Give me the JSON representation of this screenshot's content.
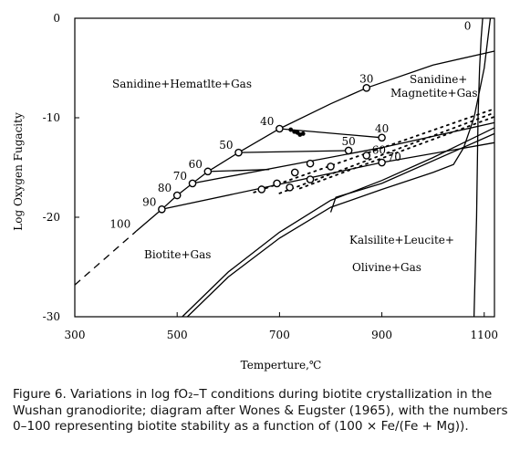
{
  "chart_data": {
    "type": "line",
    "xlabel": "Temperture,℃",
    "ylabel": "Log Oxygen Fugacity",
    "xlim": [
      300,
      1120
    ],
    "ylim": [
      -30,
      0
    ],
    "xticks": [
      "300",
      "500",
      "700",
      "900",
      "1100"
    ],
    "xtick_values": [
      300,
      500,
      700,
      900,
      1100
    ],
    "yticks": [
      "0",
      "-10",
      "-20",
      "-30"
    ],
    "ytick_values": [
      0,
      -10,
      -20,
      -30
    ],
    "grid": false,
    "field_labels": {
      "sanidine_hematite": "Sanidine+Hematlte+Gas",
      "sanidine_magnetite_1": "Sanidine+",
      "sanidine_magnetite_2": "Magnetite+Gas",
      "biotite": "Biotite+Gas",
      "kalsilite_1": "Kalsilite+Leucite+",
      "kalsilite_2": "Olivine+Gas"
    },
    "series": [
      {
        "kind": "line",
        "points": [
          [
            420,
            -21.4
          ],
          [
            470,
            -19.2
          ],
          [
            500,
            -17.8
          ],
          [
            530,
            -16.6
          ],
          [
            560,
            -15.4
          ],
          [
            620,
            -13.5
          ],
          [
            700,
            -11.1
          ],
          [
            800,
            -8.6
          ],
          [
            870,
            -7.0
          ],
          [
            1000,
            -4.7
          ],
          [
            1120,
            -3.3
          ]
        ]
      },
      {
        "kind": "dashed",
        "points": [
          [
            300,
            -26.8
          ],
          [
            420,
            -21.4
          ]
        ]
      },
      {
        "kind": "line",
        "points": [
          [
            1080,
            -30
          ],
          [
            1085,
            -20
          ],
          [
            1088,
            -10
          ],
          [
            1091,
            -5
          ],
          [
            1094,
            -2
          ],
          [
            1097,
            0
          ]
        ]
      },
      {
        "kind": "line",
        "points": [
          [
            470,
            -19.2
          ],
          [
            900,
            -14.5
          ],
          [
            1120,
            -12.5
          ]
        ]
      },
      {
        "kind": "line",
        "points": [
          [
            530,
            -16.6
          ],
          [
            900,
            -13.0
          ],
          [
            1120,
            -10.5
          ]
        ]
      },
      {
        "kind": "line",
        "points": [
          [
            800,
            -19.5
          ],
          [
            810,
            -18.0
          ],
          [
            900,
            -16.6
          ],
          [
            1120,
            -11.6
          ]
        ]
      },
      {
        "kind": "line",
        "points": [
          [
            510,
            -30
          ],
          [
            600,
            -25.5
          ],
          [
            700,
            -21.5
          ],
          [
            800,
            -18.3
          ],
          [
            900,
            -16.3
          ],
          [
            1000,
            -14.0
          ],
          [
            1120,
            -11.0
          ]
        ]
      },
      {
        "kind": "line",
        "points": [
          [
            520,
            -30
          ],
          [
            600,
            -26.0
          ],
          [
            700,
            -22.1
          ],
          [
            800,
            -19.0
          ],
          [
            900,
            -17.2
          ],
          [
            1000,
            -15.5
          ],
          [
            1040,
            -14.7
          ],
          [
            1060,
            -13.0
          ],
          [
            1080,
            -10.0
          ],
          [
            1100,
            -5.0
          ],
          [
            1112,
            0
          ]
        ]
      },
      {
        "kind": "tie",
        "points": [
          [
            620,
            -13.5
          ],
          [
            835,
            -13.3
          ]
        ]
      },
      {
        "kind": "tie",
        "points": [
          [
            700,
            -11.1
          ],
          [
            900,
            -12.0
          ]
        ]
      },
      {
        "kind": "tie",
        "points": [
          [
            560,
            -15.4
          ],
          [
            680,
            -15.2
          ]
        ]
      },
      {
        "kind": "dotted",
        "points": [
          [
            650,
            -17.5
          ],
          [
            1120,
            -9.1
          ]
        ]
      },
      {
        "kind": "dotted",
        "points": [
          [
            700,
            -17.6
          ],
          [
            1120,
            -9.5
          ]
        ]
      },
      {
        "kind": "dotted",
        "points": [
          [
            740,
            -17.1
          ],
          [
            1120,
            -9.9
          ]
        ]
      }
    ],
    "circles": [
      [
        700,
        -11.1
      ],
      [
        870,
        -7.0
      ],
      [
        900,
        -12.0
      ],
      [
        835,
        -13.3
      ],
      [
        870,
        -13.8
      ],
      [
        900,
        -14.5
      ],
      [
        620,
        -13.5
      ],
      [
        560,
        -15.4
      ],
      [
        530,
        -16.6
      ],
      [
        500,
        -17.8
      ],
      [
        470,
        -19.2
      ],
      [
        730,
        -15.5
      ],
      [
        760,
        -14.6
      ],
      [
        800,
        -14.9
      ],
      [
        665,
        -17.2
      ],
      [
        695,
        -16.6
      ],
      [
        720,
        -17.0
      ],
      [
        760,
        -16.2
      ]
    ],
    "filled_points": [
      [
        722,
        -11.2
      ],
      [
        729,
        -11.4
      ],
      [
        735,
        -11.5
      ],
      [
        740,
        -11.7
      ],
      [
        746,
        -11.6
      ]
    ],
    "point_labels": [
      {
        "text": "100",
        "at": [
          420,
          -21.4
        ],
        "anchor": "left-of"
      },
      {
        "text": "90",
        "at": [
          470,
          -19.2
        ],
        "anchor": "left-of"
      },
      {
        "text": "80",
        "at": [
          500,
          -17.8
        ],
        "anchor": "left-of"
      },
      {
        "text": "70",
        "at": [
          530,
          -16.6
        ],
        "anchor": "left-of"
      },
      {
        "text": "60",
        "at": [
          560,
          -15.4
        ],
        "anchor": "left-of"
      },
      {
        "text": "50",
        "at": [
          620,
          -13.5
        ],
        "anchor": "left-of"
      },
      {
        "text": "40",
        "at": [
          700,
          -11.1
        ],
        "anchor": "left-of"
      },
      {
        "text": "30",
        "at": [
          870,
          -7.0
        ],
        "anchor": "above"
      },
      {
        "text": "40",
        "at": [
          900,
          -12.0
        ],
        "anchor": "above"
      },
      {
        "text": "50",
        "at": [
          835,
          -13.3
        ],
        "anchor": "above"
      },
      {
        "text": "60",
        "at": [
          870,
          -13.8
        ],
        "anchor": "right-of"
      },
      {
        "text": "70",
        "at": [
          900,
          -14.5
        ],
        "anchor": "right-of"
      },
      {
        "text": "0",
        "at": [
          1085,
          -1.5
        ],
        "anchor": "left-of"
      }
    ]
  },
  "caption": "Figure 6. Variations in log fO₂–T conditions during biotite crystallization in the Wushan granodiorite; diagram after Wones & Eugster (1965), with the numbers 0–100 representing biotite stability as a function of (100 × Fe/(Fe + Mg))."
}
